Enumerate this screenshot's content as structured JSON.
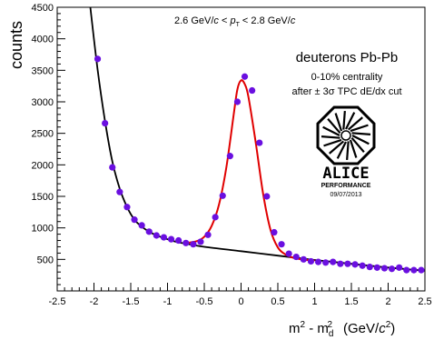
{
  "chart_data": {
    "type": "scatter",
    "title": "",
    "ylabel": "counts",
    "xlabel_parts": {
      "m": "m",
      "sup2": "2",
      "minus_md": " - m",
      "sub_d": "d",
      "units_open": "(GeV/",
      "units_c": "c",
      "units_close": ")"
    },
    "xlim": [
      -2.5,
      2.5
    ],
    "ylim": [
      0,
      4500
    ],
    "x_ticks": [
      -2.5,
      -2,
      -1.5,
      -1,
      -0.5,
      0,
      0.5,
      1,
      1.5,
      2,
      2.5
    ],
    "x_tick_labels": [
      "-2.5",
      "-2",
      "-1.5",
      "-1",
      "-0.5",
      "0",
      "0.5",
      "1",
      "1.5",
      "2",
      "2.5"
    ],
    "y_ticks": [
      500,
      1000,
      1500,
      2000,
      2500,
      3000,
      3500,
      4000,
      4500
    ],
    "y_tick_labels": [
      "500",
      "1000",
      "1500",
      "2000",
      "2500",
      "3000",
      "3500",
      "4000",
      "4500"
    ],
    "grid": false,
    "pt_range": {
      "lo": "2.6 GeV/",
      "c1": "c",
      "lt1": " < ",
      "p": "p",
      "sub_t": "T",
      "lt2": " < 2.8 GeV/",
      "c2": "c"
    },
    "annotations": {
      "species": "deuterons Pb-Pb",
      "centrality": "0-10% centrality",
      "cut": "after ± 3σ TPC dE/dx cut"
    },
    "logo": {
      "name": "ALICE",
      "sub": "PERFORMANCE",
      "date": "09/07/2013"
    },
    "colors": {
      "points": "#6a0fe0",
      "background_fit": "#000000",
      "signal_fit": "#e00000"
    },
    "series": [
      {
        "x": [
          -1.95,
          -1.85,
          -1.75,
          -1.65,
          -1.55,
          -1.45,
          -1.35,
          -1.25,
          -1.15,
          -1.05,
          -0.95,
          -0.85,
          -0.75,
          -0.65,
          -0.55,
          -0.45,
          -0.35,
          -0.25,
          -0.15,
          -0.05,
          0.05,
          0.15,
          0.25,
          0.35,
          0.45,
          0.55,
          0.65,
          0.75,
          0.85,
          0.95,
          1.05,
          1.15,
          1.25,
          1.35,
          1.45,
          1.55,
          1.65,
          1.75,
          1.85,
          1.95,
          2.05,
          2.15,
          2.25,
          2.35,
          2.45
        ],
        "y": [
          3680,
          2660,
          1960,
          1570,
          1330,
          1130,
          1040,
          940,
          880,
          850,
          820,
          800,
          760,
          740,
          780,
          890,
          1170,
          1510,
          2140,
          3000,
          3400,
          3180,
          2350,
          1500,
          930,
          740,
          590,
          540,
          500,
          470,
          460,
          450,
          460,
          430,
          430,
          420,
          400,
          380,
          370,
          360,
          350,
          370,
          330,
          330,
          330
        ]
      }
    ],
    "background_fit": {
      "x": [
        -2.05,
        -1.95,
        -1.85,
        -1.75,
        -1.65,
        -1.55,
        -1.45,
        -1.35,
        -1.25,
        -1.15,
        -1.05,
        -0.95,
        -0.85,
        -0.75,
        -0.5,
        0,
        0.5,
        1,
        1.5,
        2,
        2.5
      ],
      "y": [
        4500,
        3500,
        2700,
        2050,
        1620,
        1330,
        1130,
        1020,
        940,
        880,
        840,
        800,
        770,
        750,
        700,
        630,
        560,
        490,
        430,
        370,
        320
      ]
    },
    "signal_fit": {
      "x": [
        -0.75,
        -0.6,
        -0.5,
        -0.4,
        -0.3,
        -0.2,
        -0.1,
        -0.05,
        0,
        0.05,
        0.1,
        0.2,
        0.3,
        0.4,
        0.5,
        0.6,
        0.7,
        0.8,
        0.9,
        1.0
      ],
      "y": [
        760,
        790,
        860,
        1030,
        1370,
        1960,
        2800,
        3200,
        3340,
        3280,
        3080,
        2350,
        1540,
        970,
        690,
        580,
        530,
        505,
        490,
        480
      ]
    }
  }
}
